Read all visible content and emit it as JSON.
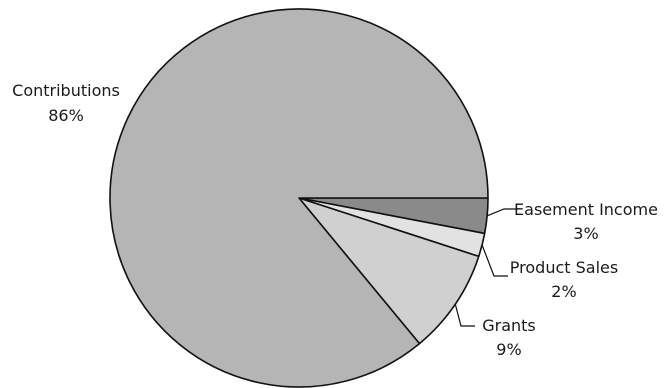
{
  "chart_data": {
    "type": "pie",
    "title": "",
    "slices": [
      {
        "label": "Easement Income",
        "value": 3,
        "value_label": "3%",
        "color": "#8a8a8a"
      },
      {
        "label": "Product Sales",
        "value": 2,
        "value_label": "2%",
        "color": "#e2e2e2"
      },
      {
        "label": "Grants",
        "value": 9,
        "value_label": "9%",
        "color": "#d0d0d0"
      },
      {
        "label": "Contributions",
        "value": 86,
        "value_label": "86%",
        "color": "#b5b5b5"
      }
    ],
    "start_angle_deg": 0,
    "direction": "clockwise",
    "legend": "none"
  }
}
